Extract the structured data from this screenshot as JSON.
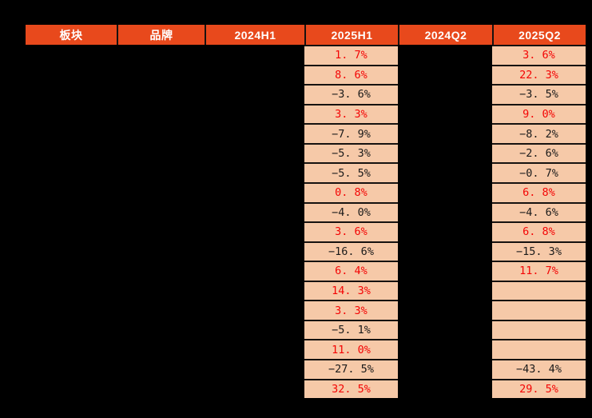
{
  "chart_data": {
    "type": "table",
    "title": "",
    "columns": [
      {
        "key": "sector",
        "label": "板块"
      },
      {
        "key": "brand",
        "label": "品牌"
      },
      {
        "key": "h1_2024",
        "label": "2024H1"
      },
      {
        "key": "h1_2025",
        "label": "2025H1"
      },
      {
        "key": "q2_2024",
        "label": "2024Q2"
      },
      {
        "key": "q2_2025",
        "label": "2025Q2"
      }
    ],
    "note_redaction": "sector, brand, 2024H1 and 2024Q2 cell contents are blacked out in the screenshot; only 2025H1 and 2025Q2 values are visible",
    "value_format": "percent, one decimal, rendered like '1. 7%' with minus sign '−' for negatives",
    "color_rule": "positive values red, negative values black, empty cells blank peach",
    "rows": [
      {
        "h1_2025": 1.7,
        "q2_2025": 3.6
      },
      {
        "h1_2025": 8.6,
        "q2_2025": 22.3
      },
      {
        "h1_2025": -3.6,
        "q2_2025": -3.5
      },
      {
        "h1_2025": 3.3,
        "q2_2025": 9.0
      },
      {
        "h1_2025": -7.9,
        "q2_2025": -8.2
      },
      {
        "h1_2025": -5.3,
        "q2_2025": -2.6
      },
      {
        "h1_2025": -5.5,
        "q2_2025": -0.7
      },
      {
        "h1_2025": 0.8,
        "q2_2025": 6.8
      },
      {
        "h1_2025": -4.0,
        "q2_2025": -4.6
      },
      {
        "h1_2025": 3.6,
        "q2_2025": 6.8
      },
      {
        "h1_2025": -16.6,
        "q2_2025": -15.3
      },
      {
        "h1_2025": 6.4,
        "q2_2025": 11.7
      },
      {
        "h1_2025": 14.3,
        "q2_2025": null
      },
      {
        "h1_2025": 3.3,
        "q2_2025": null
      },
      {
        "h1_2025": -5.1,
        "q2_2025": null
      },
      {
        "h1_2025": 11.0,
        "q2_2025": null
      },
      {
        "h1_2025": -27.5,
        "q2_2025": -43.4
      },
      {
        "h1_2025": 32.5,
        "q2_2025": 29.5
      }
    ],
    "colors": {
      "page_bg": "#000000",
      "header_bg": "#E8491C",
      "header_fg": "#FFFFFF",
      "cell_bg": "#F6C9A8",
      "positive": "#F40404",
      "negative": "#1A1A1A",
      "divider": "#161210"
    }
  }
}
